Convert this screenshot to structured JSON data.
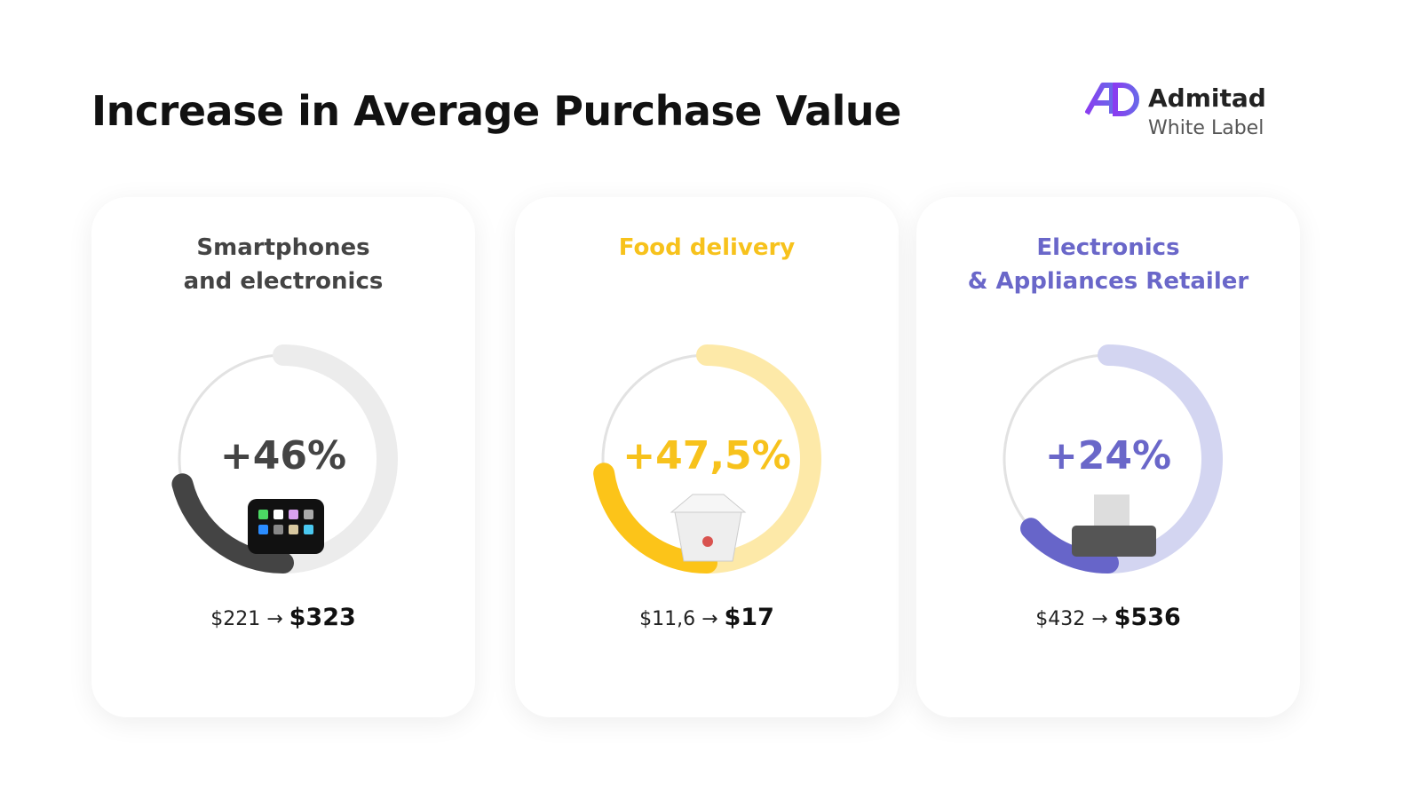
{
  "header": {
    "title": "Increase in Average Purchase Value"
  },
  "logo": {
    "name": "Admitad",
    "subtitle": "White Label"
  },
  "cards": [
    {
      "title_lines": [
        "Smartphones",
        "and electronics"
      ],
      "percent": "+46%",
      "from": "$221",
      "arrow": "→",
      "to": "$323"
    },
    {
      "title_lines": [
        "Food delivery"
      ],
      "percent": "+47,5%",
      "from": "$11,6",
      "arrow": "→",
      "to": "$17"
    },
    {
      "title_lines": [
        "Electronics",
        "& Appliances Retailer"
      ],
      "percent": "+24%",
      "from": "$432",
      "arrow": "→",
      "to": "$536"
    }
  ]
}
